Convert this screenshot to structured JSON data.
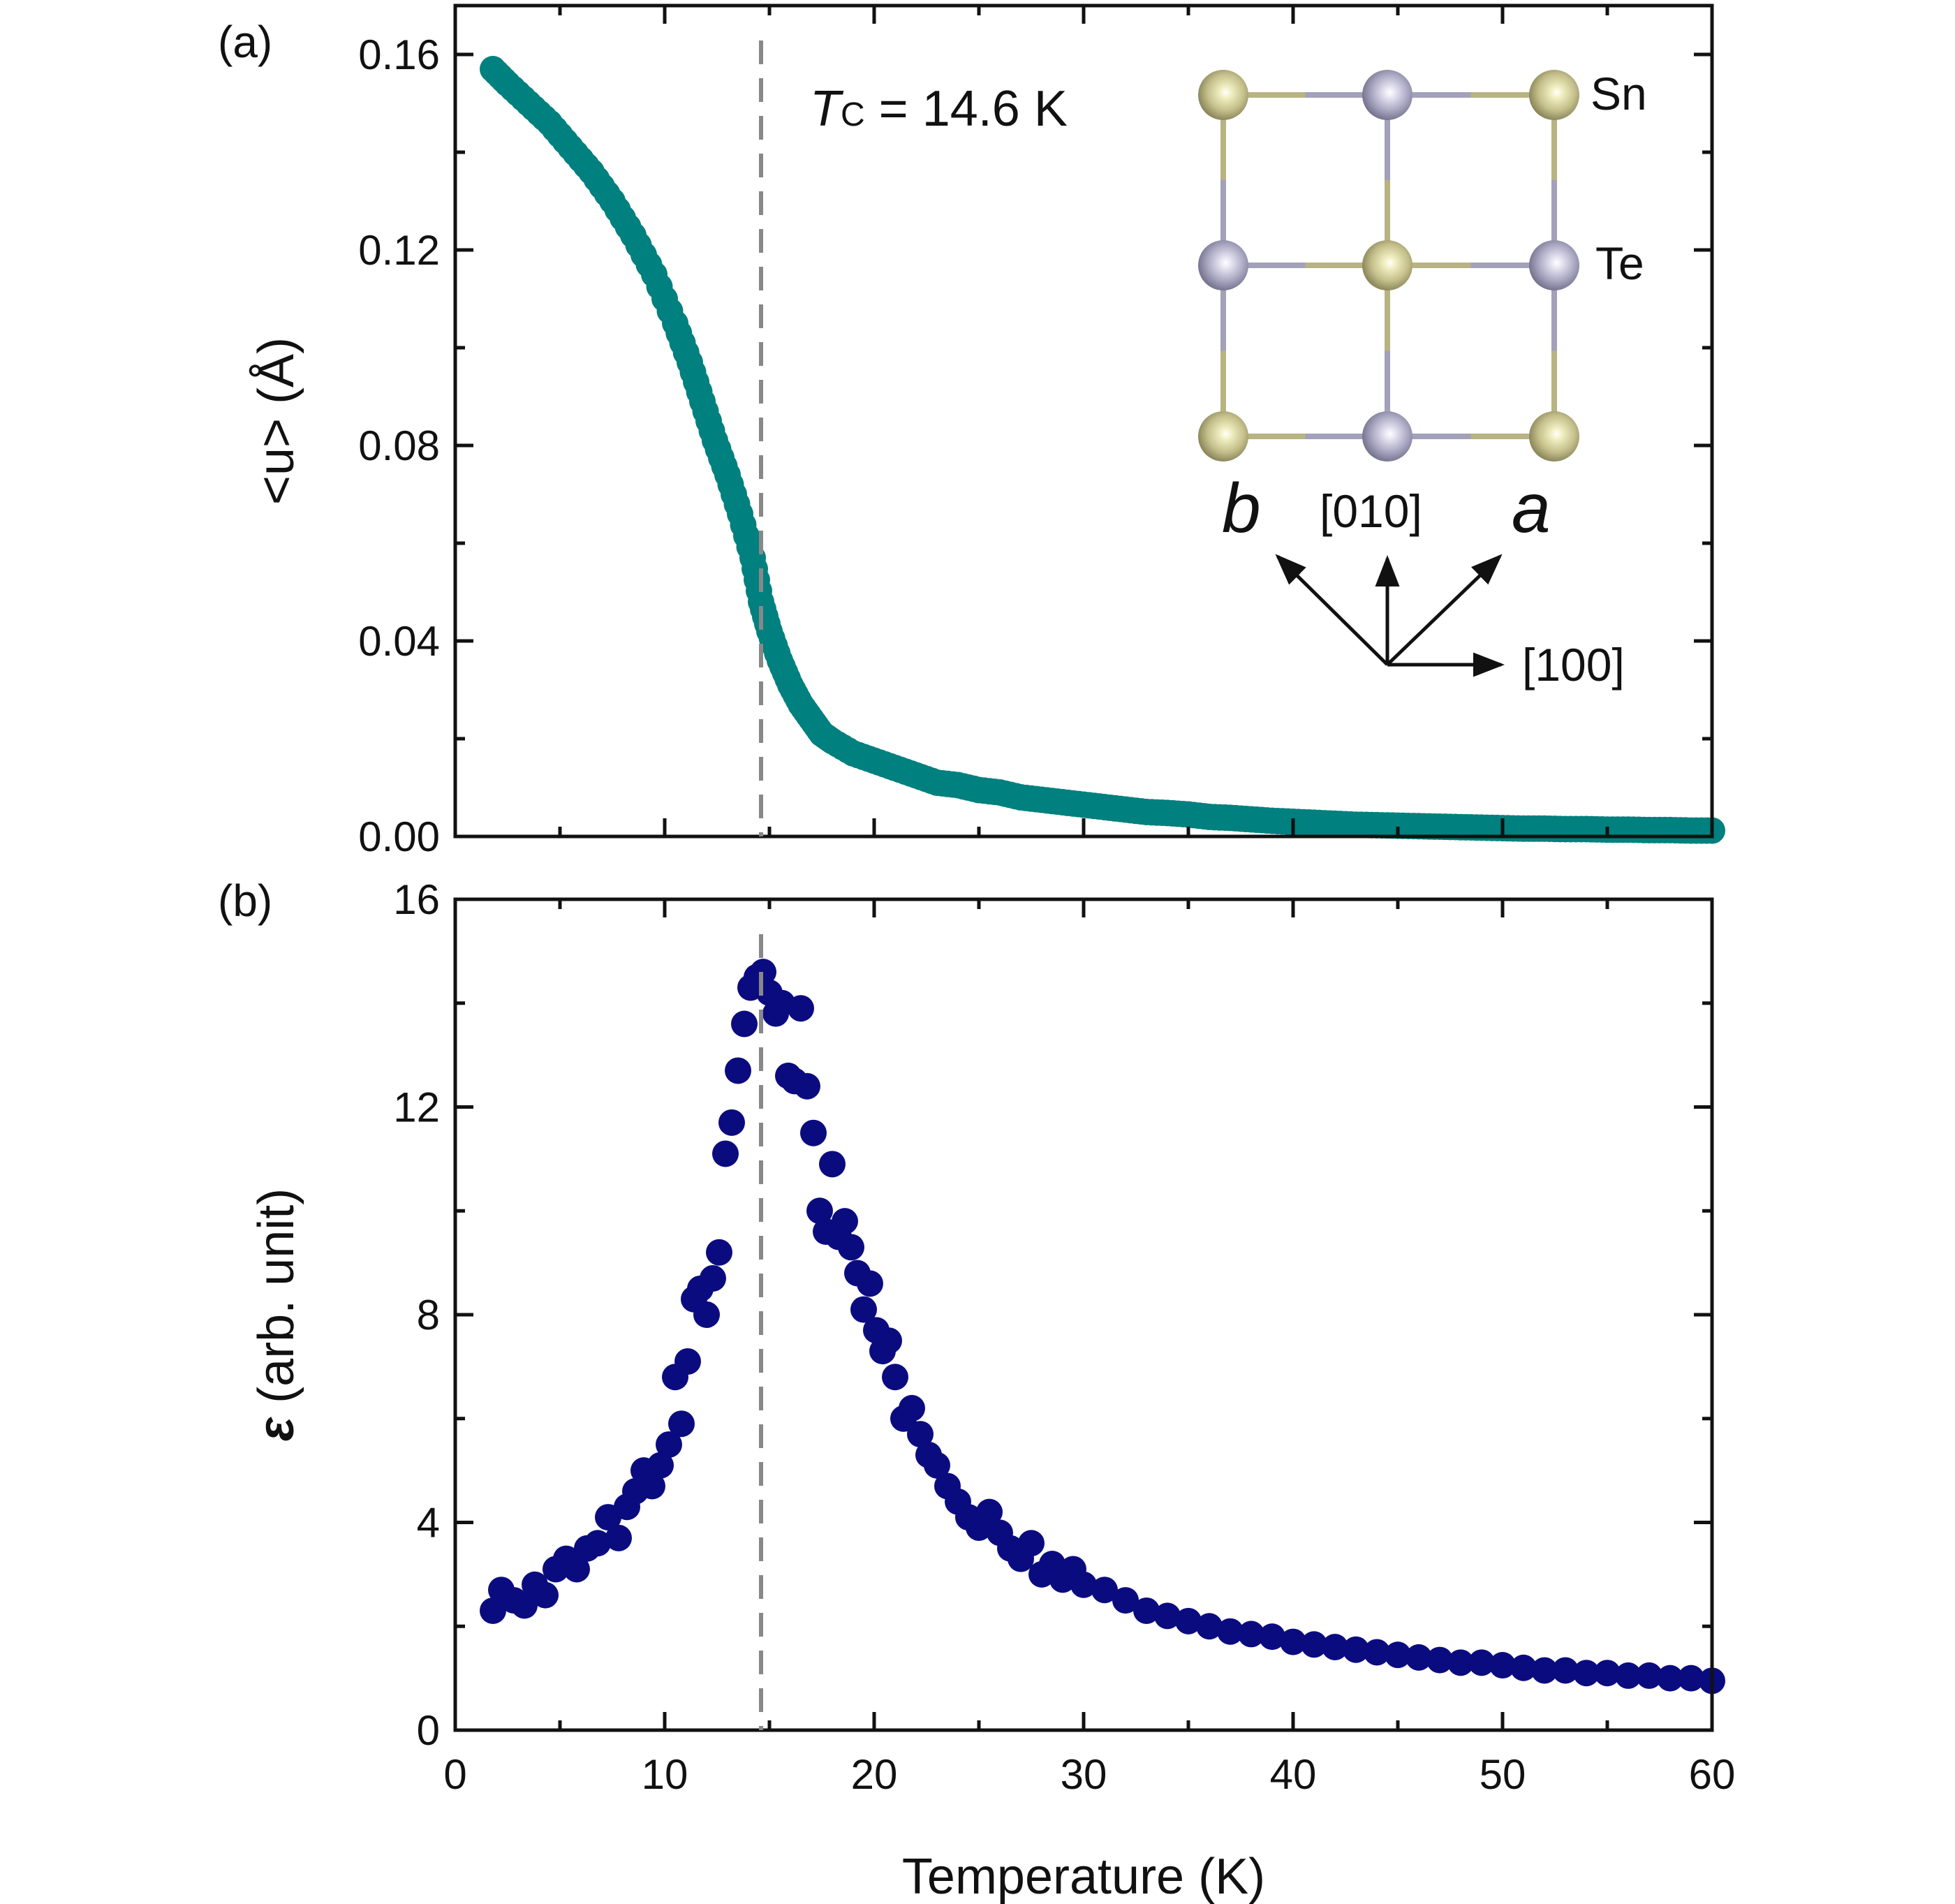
{
  "chart_data": [
    {
      "panel": "(a)",
      "type": "scatter",
      "xlabel": "Temperature (K)",
      "ylabel": "<u> (Å)",
      "xlim": [
        0,
        60
      ],
      "ylim": [
        0,
        0.17
      ],
      "xticks": [
        "0",
        "10",
        "20",
        "30",
        "40",
        "50",
        "60"
      ],
      "yticks": [
        "0.00",
        "0.04",
        "0.08",
        "0.12",
        "0.16"
      ],
      "color": "#00807e",
      "grid": false,
      "points": [
        [
          1.8,
          0.157
        ],
        [
          2.5,
          0.154
        ],
        [
          3.5,
          0.15
        ],
        [
          4.5,
          0.146
        ],
        [
          5.5,
          0.141
        ],
        [
          6.5,
          0.136
        ],
        [
          7.5,
          0.13
        ],
        [
          8.5,
          0.123
        ],
        [
          9.5,
          0.115
        ],
        [
          10.5,
          0.105
        ],
        [
          11.2,
          0.097
        ],
        [
          11.8,
          0.089
        ],
        [
          12.4,
          0.081
        ],
        [
          13.0,
          0.074
        ],
        [
          13.6,
          0.066
        ],
        [
          14.2,
          0.057
        ],
        [
          14.6,
          0.048
        ],
        [
          15.0,
          0.042
        ],
        [
          15.5,
          0.036
        ],
        [
          16.0,
          0.031
        ],
        [
          16.5,
          0.027
        ],
        [
          17.0,
          0.024
        ],
        [
          17.5,
          0.021
        ],
        [
          18.0,
          0.0195
        ],
        [
          19.0,
          0.017
        ],
        [
          20.0,
          0.0155
        ],
        [
          21.0,
          0.014
        ],
        [
          22.0,
          0.0125
        ],
        [
          23.0,
          0.011
        ],
        [
          24.0,
          0.0105
        ],
        [
          25.0,
          0.0095
        ],
        [
          26.0,
          0.009
        ],
        [
          27.0,
          0.008
        ],
        [
          28.0,
          0.0075
        ],
        [
          29.0,
          0.007
        ],
        [
          30.0,
          0.0065
        ],
        [
          31.0,
          0.006
        ],
        [
          32.0,
          0.0055
        ],
        [
          33.0,
          0.005
        ],
        [
          34.0,
          0.0048
        ],
        [
          35.0,
          0.0045
        ],
        [
          36.0,
          0.004
        ],
        [
          37.0,
          0.0038
        ],
        [
          38.0,
          0.0035
        ],
        [
          39.0,
          0.0032
        ],
        [
          40.0,
          0.003
        ],
        [
          41.0,
          0.0028
        ],
        [
          42.0,
          0.0026
        ],
        [
          43.0,
          0.0024
        ],
        [
          44.0,
          0.0023
        ],
        [
          45.0,
          0.0022
        ],
        [
          46.0,
          0.0021
        ],
        [
          47.0,
          0.002
        ],
        [
          48.0,
          0.0019
        ],
        [
          49.0,
          0.0018
        ],
        [
          50.0,
          0.0017
        ],
        [
          51.0,
          0.0016
        ],
        [
          52.0,
          0.0016
        ],
        [
          53.0,
          0.0015
        ],
        [
          54.0,
          0.0015
        ],
        [
          55.0,
          0.0014
        ],
        [
          56.0,
          0.0014
        ],
        [
          57.0,
          0.0013
        ],
        [
          58.0,
          0.0013
        ],
        [
          59.0,
          0.0012
        ],
        [
          60.0,
          0.0012
        ]
      ],
      "annotation": {
        "symbol": "T",
        "subscript": "C",
        "text": " = 14.6 K",
        "x": 14.6
      },
      "inset": {
        "atoms": [
          [
            "Sn",
            "Te",
            "Sn"
          ],
          [
            "Te",
            "Sn",
            "Te"
          ],
          [
            "Sn",
            "Te",
            "Sn"
          ]
        ],
        "atom_labels": [
          "Sn",
          "Te"
        ],
        "axis_labels": {
          "b": "b",
          "a": "a",
          "dir010": "[010]",
          "dir100": "[100]"
        },
        "colors": {
          "Sn": "#b8b383",
          "Te": "#a3a0b9"
        }
      }
    },
    {
      "panel": "(b)",
      "type": "scatter",
      "xlabel": "Temperature (K)",
      "ylabel_symbol": "ε",
      "ylabel": " (arb. unit)",
      "xlim": [
        0,
        60
      ],
      "ylim": [
        0,
        16
      ],
      "xticks": [
        "0",
        "10",
        "20",
        "30",
        "40",
        "50",
        "60"
      ],
      "yticks": [
        "0",
        "4",
        "8",
        "12",
        "16"
      ],
      "color": "#0b0b80",
      "grid": false,
      "dashed_line_x": 14.6,
      "points": [
        [
          1.8,
          2.3
        ],
        [
          2.2,
          2.7
        ],
        [
          2.8,
          2.5
        ],
        [
          3.3,
          2.4
        ],
        [
          3.8,
          2.8
        ],
        [
          4.3,
          2.6
        ],
        [
          4.8,
          3.1
        ],
        [
          5.3,
          3.3
        ],
        [
          5.8,
          3.1
        ],
        [
          6.3,
          3.5
        ],
        [
          6.8,
          3.6
        ],
        [
          7.3,
          4.1
        ],
        [
          7.8,
          3.7
        ],
        [
          8.2,
          4.3
        ],
        [
          8.6,
          4.6
        ],
        [
          9.0,
          5.0
        ],
        [
          9.4,
          4.7
        ],
        [
          9.8,
          5.1
        ],
        [
          10.2,
          5.5
        ],
        [
          10.5,
          6.8
        ],
        [
          10.8,
          5.9
        ],
        [
          11.1,
          7.1
        ],
        [
          11.4,
          8.3
        ],
        [
          11.7,
          8.5
        ],
        [
          12.0,
          8.0
        ],
        [
          12.3,
          8.7
        ],
        [
          12.6,
          9.2
        ],
        [
          12.9,
          11.1
        ],
        [
          13.2,
          11.7
        ],
        [
          13.5,
          12.7
        ],
        [
          13.8,
          13.6
        ],
        [
          14.1,
          14.3
        ],
        [
          14.4,
          14.5
        ],
        [
          14.7,
          14.6
        ],
        [
          15.0,
          14.2
        ],
        [
          15.3,
          13.8
        ],
        [
          15.6,
          14.0
        ],
        [
          15.9,
          12.6
        ],
        [
          16.2,
          12.5
        ],
        [
          16.5,
          13.9
        ],
        [
          16.8,
          12.4
        ],
        [
          17.1,
          11.5
        ],
        [
          17.4,
          10.0
        ],
        [
          17.7,
          9.6
        ],
        [
          18.0,
          10.9
        ],
        [
          18.3,
          9.5
        ],
        [
          18.6,
          9.8
        ],
        [
          18.9,
          9.3
        ],
        [
          19.2,
          8.8
        ],
        [
          19.5,
          8.1
        ],
        [
          19.8,
          8.6
        ],
        [
          20.1,
          7.7
        ],
        [
          20.4,
          7.3
        ],
        [
          20.7,
          7.5
        ],
        [
          21.0,
          6.8
        ],
        [
          21.4,
          6.0
        ],
        [
          21.8,
          6.2
        ],
        [
          22.2,
          5.7
        ],
        [
          22.6,
          5.3
        ],
        [
          23.0,
          5.1
        ],
        [
          23.5,
          4.7
        ],
        [
          24.0,
          4.4
        ],
        [
          24.5,
          4.1
        ],
        [
          25.0,
          3.9
        ],
        [
          25.5,
          4.2
        ],
        [
          26.0,
          3.8
        ],
        [
          26.5,
          3.5
        ],
        [
          27.0,
          3.3
        ],
        [
          27.5,
          3.6
        ],
        [
          28.0,
          3.0
        ],
        [
          28.5,
          3.2
        ],
        [
          29.0,
          2.9
        ],
        [
          29.5,
          3.1
        ],
        [
          30.0,
          2.8
        ],
        [
          31.0,
          2.7
        ],
        [
          32.0,
          2.5
        ],
        [
          33.0,
          2.3
        ],
        [
          34.0,
          2.2
        ],
        [
          35.0,
          2.1
        ],
        [
          36.0,
          2.0
        ],
        [
          37.0,
          1.9
        ],
        [
          38.0,
          1.85
        ],
        [
          39.0,
          1.8
        ],
        [
          40.0,
          1.7
        ],
        [
          41.0,
          1.65
        ],
        [
          42.0,
          1.6
        ],
        [
          43.0,
          1.55
        ],
        [
          44.0,
          1.5
        ],
        [
          45.0,
          1.45
        ],
        [
          46.0,
          1.4
        ],
        [
          47.0,
          1.35
        ],
        [
          48.0,
          1.3
        ],
        [
          49.0,
          1.3
        ],
        [
          50.0,
          1.25
        ],
        [
          51.0,
          1.2
        ],
        [
          52.0,
          1.15
        ],
        [
          53.0,
          1.15
        ],
        [
          54.0,
          1.1
        ],
        [
          55.0,
          1.1
        ],
        [
          56.0,
          1.05
        ],
        [
          57.0,
          1.05
        ],
        [
          58.0,
          1.0
        ],
        [
          59.0,
          1.0
        ],
        [
          60.0,
          0.95
        ]
      ]
    }
  ]
}
